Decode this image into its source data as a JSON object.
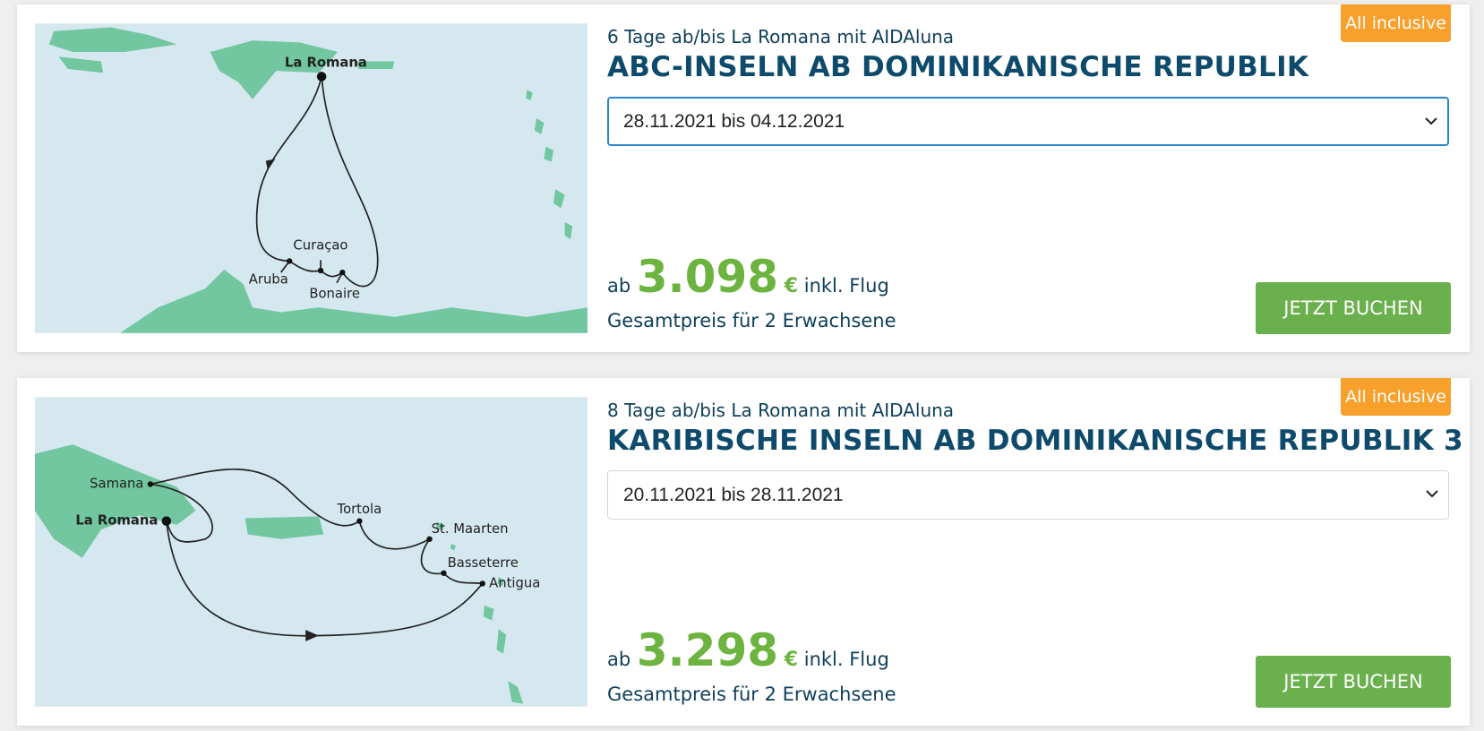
{
  "cards": [
    {
      "badge": "All inclusive",
      "subtitle": "6 Tage ab/bis La Romana mit AIDAluna",
      "title": "ABC-INSELN AB DOMINIKANISCHE REPUBLIK",
      "date": "28.11.2021 bis 04.12.2021",
      "price_prefix": "ab",
      "price": "3.098",
      "currency": "€",
      "price_suffix": "inkl. Flug",
      "price_note": "Gesamtpreis für 2 Erwachsene",
      "button": "JETZT BUCHEN",
      "map_labels": [
        "La Romana",
        "Curaçao",
        "Aruba",
        "Bonaire"
      ]
    },
    {
      "badge": "All inclusive",
      "subtitle": "8 Tage ab/bis La Romana mit AIDAluna",
      "title": "KARIBISCHE INSELN AB DOMINIKANISCHE REPUBLIK 3",
      "date": "20.11.2021 bis 28.11.2021",
      "price_prefix": "ab",
      "price": "3.298",
      "currency": "€",
      "price_suffix": "inkl. Flug",
      "price_note": "Gesamtpreis für 2 Erwachsene",
      "button": "JETZT BUCHEN",
      "map_labels": [
        "Samana",
        "La Romana",
        "Tortola",
        "St. Maarten",
        "Basseterre",
        "Antigua"
      ]
    }
  ]
}
